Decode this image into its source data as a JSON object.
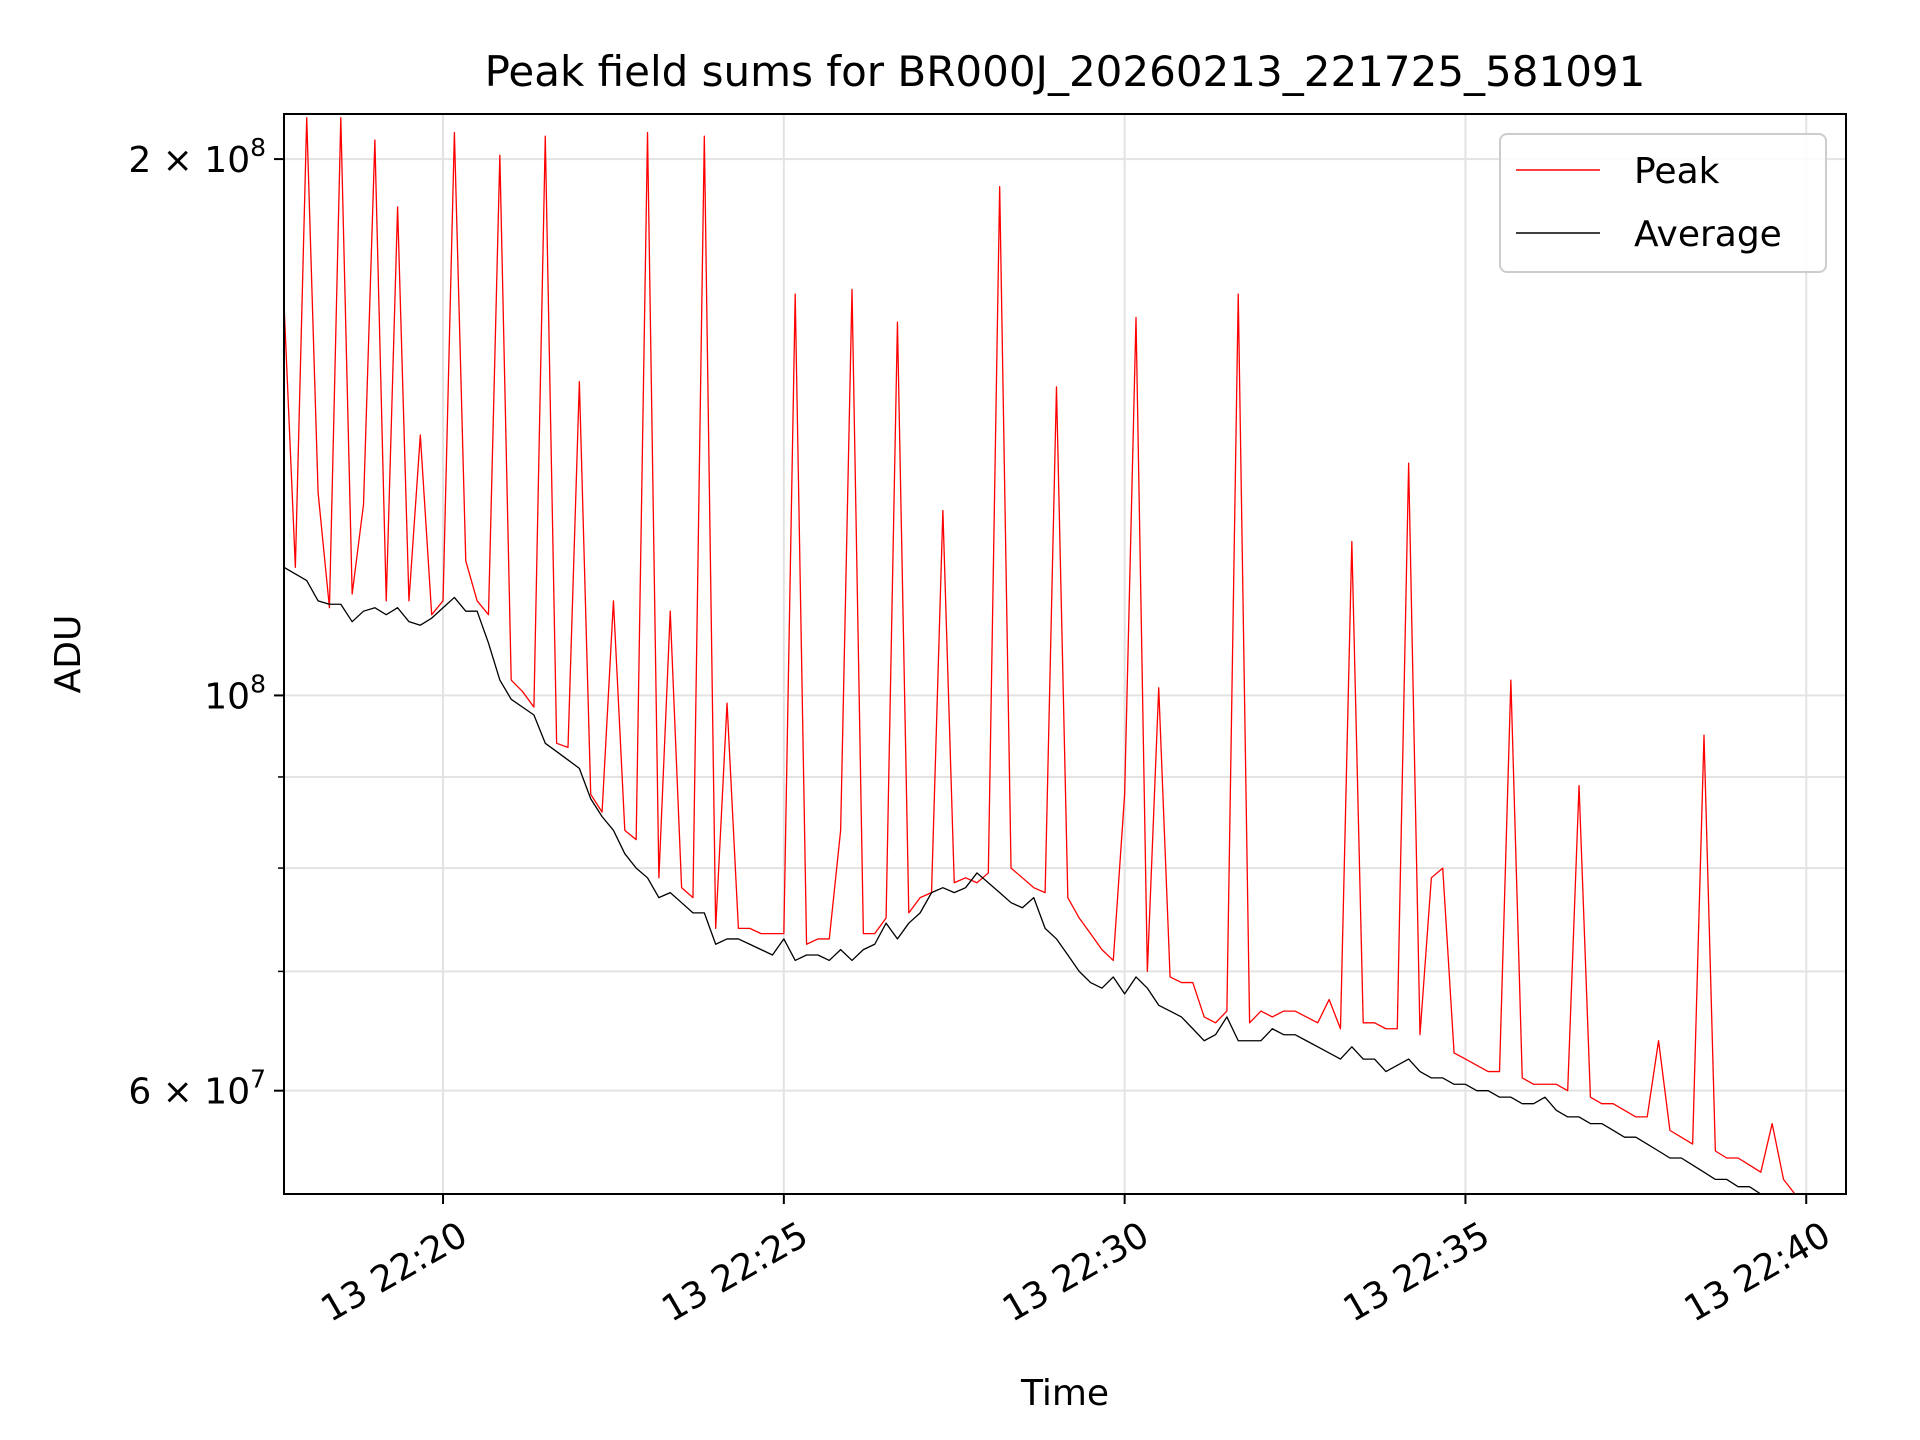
{
  "chart_data": {
    "type": "line",
    "title": "Peak field sums for BR000J_20260213_221725_581091",
    "xlabel": "Time",
    "ylabel": "ADU",
    "y_scale": "log",
    "xlim": [
      "2026-02-13T22:17:40",
      "2026-02-13T22:40:35"
    ],
    "ylim": [
      52500000,
      212000000
    ],
    "grid": true,
    "legend_position": "top-right",
    "x_ticks": [
      {
        "t": "2026-02-13T22:20:00",
        "label": "13 22:20"
      },
      {
        "t": "2026-02-13T22:25:00",
        "label": "13 22:25"
      },
      {
        "t": "2026-02-13T22:30:00",
        "label": "13 22:30"
      },
      {
        "t": "2026-02-13T22:35:00",
        "label": "13 22:35"
      },
      {
        "t": "2026-02-13T22:40:00",
        "label": "13 22:40"
      }
    ],
    "y_ticks": [
      {
        "v": 200000000,
        "base": "2 × 10",
        "exp": "8"
      },
      {
        "v": 100000000,
        "base": "10",
        "exp": "8"
      },
      {
        "v": 60000000,
        "base": "6 × 10",
        "exp": "7"
      }
    ],
    "y_minor_ticks": [
      70000000,
      80000000,
      90000000
    ],
    "x_start": "2026-02-13T22:17:40",
    "x_step_seconds": 10,
    "series": [
      {
        "name": "Peak",
        "color": "#ff0000",
        "values": [
          166000000,
          118000000,
          211000000,
          130000000,
          112000000,
          211000000,
          114000000,
          128000000,
          205000000,
          113000000,
          188000000,
          113000000,
          140000000,
          111000000,
          113000000,
          207000000,
          119000000,
          113000000,
          111000000,
          201000000,
          102000000,
          100500000,
          98500000,
          206000000,
          94000000,
          93500000,
          150000000,
          88000000,
          86000000,
          113000000,
          84000000,
          83000000,
          207000000,
          79000000,
          111500000,
          78000000,
          77000000,
          206000000,
          74000000,
          99000000,
          74000000,
          74000000,
          73500000,
          73500000,
          73500000,
          168000000,
          72500000,
          73000000,
          73000000,
          84000000,
          169000000,
          73500000,
          73500000,
          75000000,
          162000000,
          75500000,
          77000000,
          77500000,
          127000000,
          78500000,
          79000000,
          78500000,
          79500000,
          193000000,
          80000000,
          79000000,
          78000000,
          77500000,
          149000000,
          77000000,
          75000000,
          73500000,
          72000000,
          71000000,
          88000000,
          163000000,
          70000000,
          101000000,
          69500000,
          69000000,
          69000000,
          66000000,
          65500000,
          66500000,
          168000000,
          65500000,
          66500000,
          66000000,
          66500000,
          66500000,
          66000000,
          65500000,
          67500000,
          65000000,
          122000000,
          65500000,
          65500000,
          65000000,
          65000000,
          135000000,
          64500000,
          79000000,
          80000000,
          63000000,
          62500000,
          62000000,
          61500000,
          61500000,
          102000000,
          61000000,
          60500000,
          60500000,
          60500000,
          60000000,
          89000000,
          59500000,
          59000000,
          59000000,
          58500000,
          58000000,
          58000000,
          64000000,
          57000000,
          56500000,
          56000000,
          95000000,
          55500000,
          55000000,
          55000000,
          54500000,
          54000000,
          57500000,
          53500000,
          52500000
        ]
      },
      {
        "name": "Average",
        "color": "#000000",
        "values": [
          118000000,
          117000000,
          116000000,
          113000000,
          112500000,
          112500000,
          110000000,
          111500000,
          112000000,
          111000000,
          112000000,
          110000000,
          109500000,
          110500000,
          112000000,
          113500000,
          111500000,
          111500000,
          107000000,
          102000000,
          99500000,
          98500000,
          97500000,
          94000000,
          93000000,
          92000000,
          91000000,
          87500000,
          85500000,
          84000000,
          81500000,
          80000000,
          79000000,
          77000000,
          77500000,
          76500000,
          75500000,
          75500000,
          72500000,
          73000000,
          73000000,
          72500000,
          72000000,
          71500000,
          73000000,
          71000000,
          71500000,
          71500000,
          71000000,
          72000000,
          71000000,
          72000000,
          72500000,
          74500000,
          73000000,
          74500000,
          75500000,
          77500000,
          78000000,
          77500000,
          78000000,
          79500000,
          78500000,
          77500000,
          76500000,
          76000000,
          77000000,
          74000000,
          73000000,
          71500000,
          70000000,
          69000000,
          68500000,
          69500000,
          68000000,
          69500000,
          68500000,
          67000000,
          66500000,
          66000000,
          65000000,
          64000000,
          64500000,
          66000000,
          64000000,
          64000000,
          64000000,
          65000000,
          64500000,
          64500000,
          64000000,
          63500000,
          63000000,
          62500000,
          63500000,
          62500000,
          62500000,
          61500000,
          62000000,
          62500000,
          61500000,
          61000000,
          61000000,
          60500000,
          60500000,
          60000000,
          60000000,
          59500000,
          59500000,
          59000000,
          59000000,
          59500000,
          58500000,
          58000000,
          58000000,
          57500000,
          57500000,
          57000000,
          56500000,
          56500000,
          56000000,
          55500000,
          55000000,
          55000000,
          54500000,
          54000000,
          53500000,
          53500000,
          53000000,
          53000000,
          52500000,
          52500000,
          52000000,
          52000000
        ]
      }
    ]
  }
}
